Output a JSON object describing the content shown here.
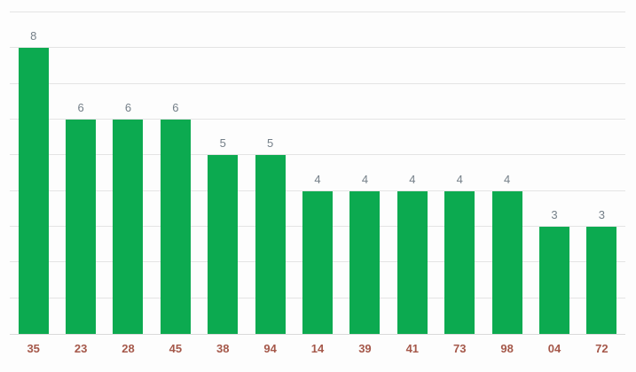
{
  "chart_data": {
    "type": "bar",
    "title": "",
    "xlabel": "",
    "ylabel": "",
    "categories": [
      "35",
      "23",
      "28",
      "45",
      "38",
      "94",
      "14",
      "39",
      "41",
      "73",
      "98",
      "04",
      "72"
    ],
    "values": [
      8,
      6,
      6,
      6,
      5,
      5,
      4,
      4,
      4,
      4,
      4,
      3,
      3
    ],
    "ylim": [
      0,
      9
    ],
    "gridline_interval": 1,
    "grid": "on",
    "legend": "none",
    "y_tick_labels_shown": false,
    "value_labels_shown": true
  },
  "colors": {
    "background": "#fdfdfd",
    "bar": "#0caa50",
    "gridline": "#e4e4e4",
    "baseline": "#dadada",
    "value_label": "#747f88",
    "category_label": "#a5584a"
  }
}
